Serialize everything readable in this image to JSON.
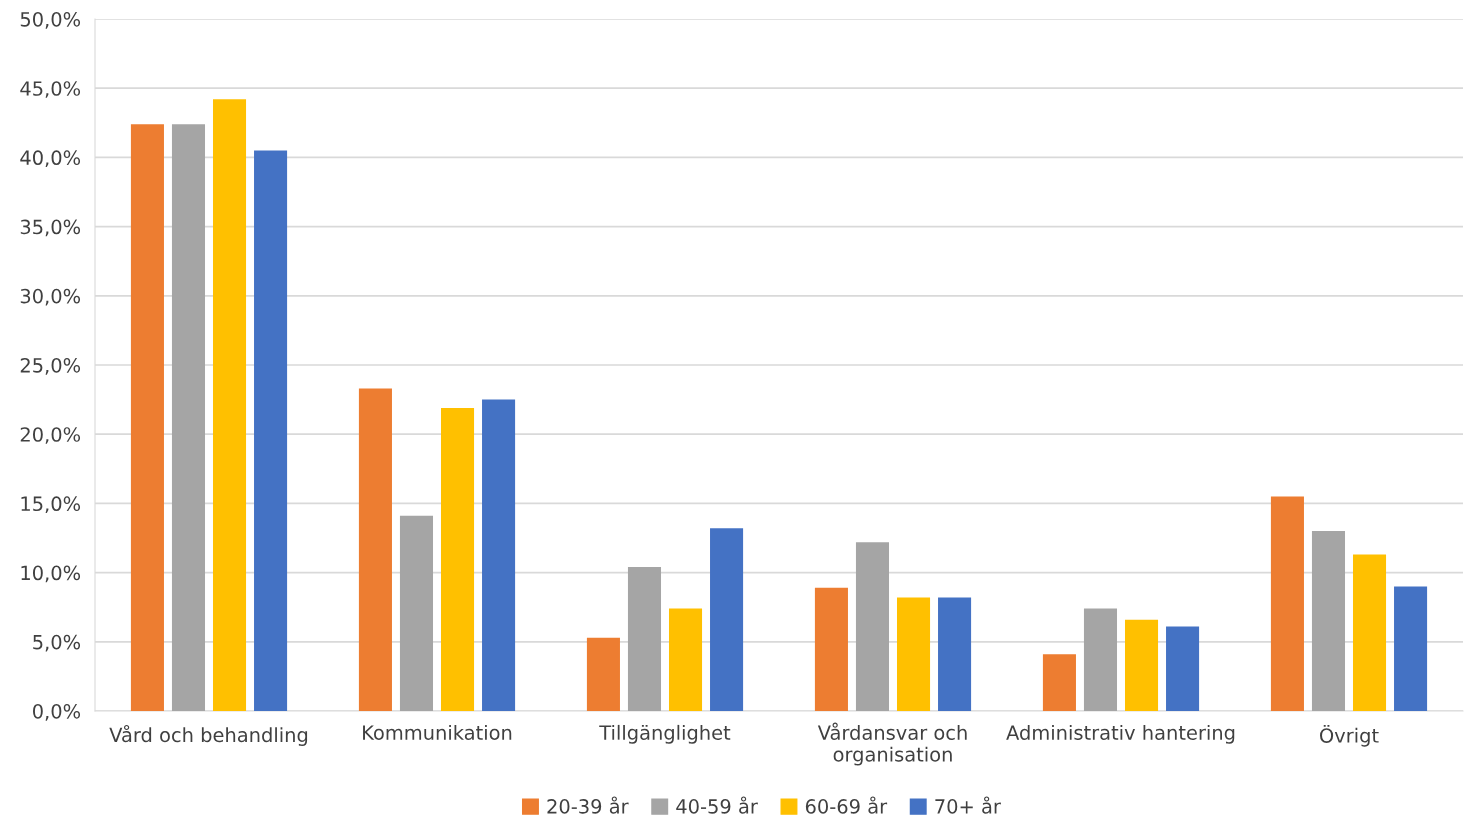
{
  "chart_data": {
    "type": "bar",
    "categories": [
      "Vård och behandling",
      "Kommunikation",
      "Tillgänglighet",
      "Vårdansvar och\norganisation",
      "Administrativ hantering",
      "Övrigt"
    ],
    "series": [
      {
        "name": "20-39 år",
        "color": "#ed7d31",
        "values": [
          42.4,
          23.3,
          5.3,
          8.9,
          4.1,
          15.5
        ]
      },
      {
        "name": "40-59 år",
        "color": "#a5a5a5",
        "values": [
          42.4,
          14.1,
          10.4,
          12.2,
          7.4,
          13.0
        ]
      },
      {
        "name": "60-69 år",
        "color": "#ffc000",
        "values": [
          44.2,
          21.9,
          7.4,
          8.2,
          6.6,
          11.3
        ]
      },
      {
        "name": "70+ år",
        "color": "#4472c4",
        "values": [
          40.5,
          22.5,
          13.2,
          8.2,
          6.1,
          9.0
        ]
      }
    ],
    "ylim": [
      0,
      50
    ],
    "yticks": [
      {
        "value": 0,
        "label": "0,0%"
      },
      {
        "value": 5,
        "label": "5,0%"
      },
      {
        "value": 10,
        "label": "10,0%"
      },
      {
        "value": 15,
        "label": "15,0%"
      },
      {
        "value": 20,
        "label": "20,0%"
      },
      {
        "value": 25,
        "label": "25,0%"
      },
      {
        "value": 30,
        "label": "30,0%"
      },
      {
        "value": 35,
        "label": "35,0%"
      },
      {
        "value": 40,
        "label": "40,0%"
      },
      {
        "value": 45,
        "label": "45,0%"
      },
      {
        "value": 50,
        "label": "50,0%"
      }
    ],
    "grid": "y",
    "legend": "bottom"
  }
}
